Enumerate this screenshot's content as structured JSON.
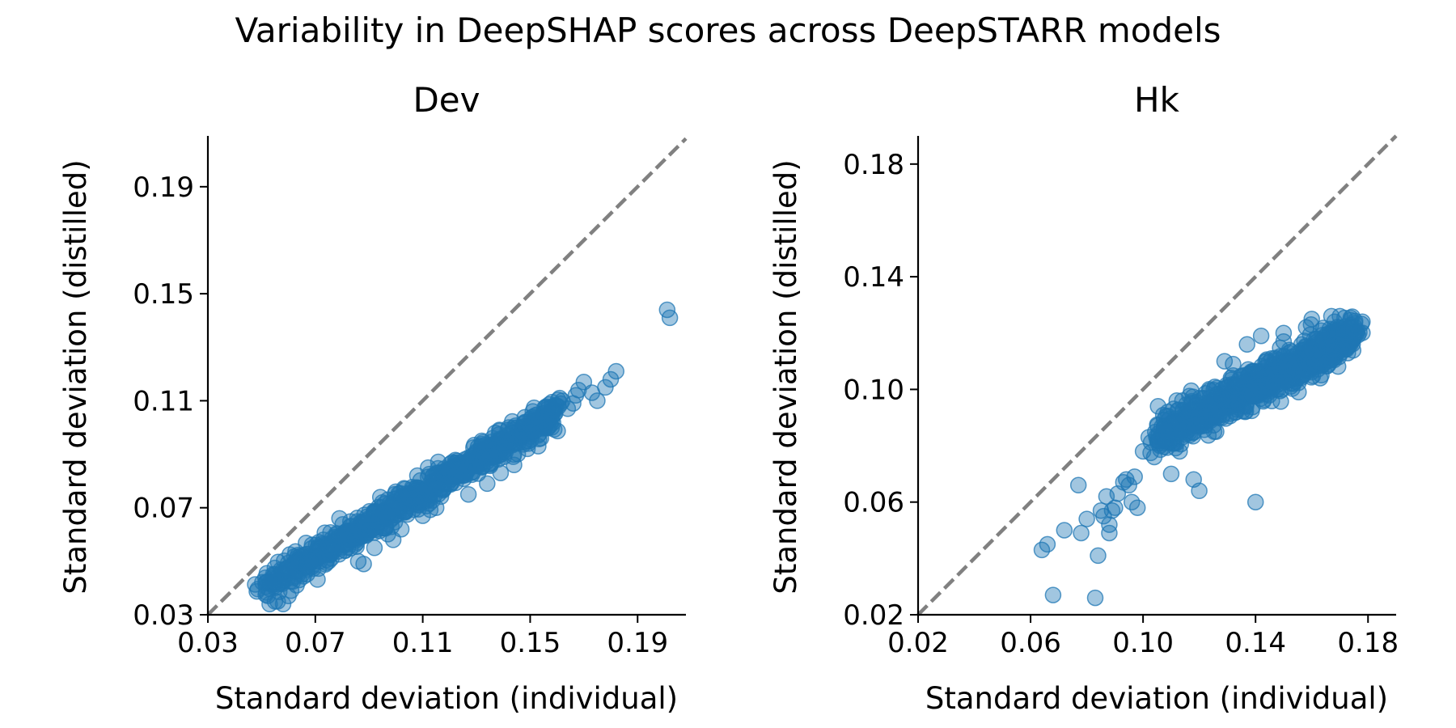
{
  "suptitle": "Variability in DeepSHAP scores across DeepSTARR models",
  "colors": {
    "points": "#1f77b4",
    "identity_line": "#808080",
    "axis": "#000000"
  },
  "chart_data": [
    {
      "type": "scatter",
      "title": "Dev",
      "xlabel": "Standard deviation (individual)",
      "ylabel": "Standard deviation (distilled)",
      "xlim": [
        0.03,
        0.208
      ],
      "ylim": [
        0.03,
        0.209
      ],
      "xticks": [
        0.03,
        0.07,
        0.11,
        0.15,
        0.19
      ],
      "yticks": [
        0.03,
        0.07,
        0.11,
        0.15,
        0.19
      ],
      "tick_labels": [
        "0.03",
        "0.07",
        "0.11",
        "0.15",
        "0.19"
      ],
      "identity_line": true,
      "grid": false,
      "cloud": {
        "n": 900,
        "x_range": [
          0.052,
          0.16
        ],
        "slope": 0.595,
        "intercept": 0.0105,
        "spread": 0.0028
      },
      "points": [
        [
          0.053,
          0.034
        ],
        [
          0.055,
          0.035
        ],
        [
          0.056,
          0.035
        ],
        [
          0.058,
          0.034
        ],
        [
          0.06,
          0.037
        ],
        [
          0.061,
          0.039
        ],
        [
          0.063,
          0.041
        ],
        [
          0.064,
          0.043
        ],
        [
          0.067,
          0.048
        ],
        [
          0.068,
          0.05
        ],
        [
          0.07,
          0.051
        ],
        [
          0.072,
          0.052
        ],
        [
          0.073,
          0.058
        ],
        [
          0.075,
          0.05
        ],
        [
          0.078,
          0.06
        ],
        [
          0.079,
          0.066
        ],
        [
          0.081,
          0.054
        ],
        [
          0.084,
          0.061
        ],
        [
          0.086,
          0.05
        ],
        [
          0.088,
          0.049
        ],
        [
          0.09,
          0.066
        ],
        [
          0.092,
          0.055
        ],
        [
          0.095,
          0.072
        ],
        [
          0.097,
          0.073
        ],
        [
          0.099,
          0.058
        ],
        [
          0.1,
          0.076
        ],
        [
          0.102,
          0.062
        ],
        [
          0.105,
          0.074
        ],
        [
          0.108,
          0.082
        ],
        [
          0.11,
          0.067
        ],
        [
          0.112,
          0.085
        ],
        [
          0.115,
          0.07
        ],
        [
          0.118,
          0.079
        ],
        [
          0.121,
          0.087
        ],
        [
          0.124,
          0.085
        ],
        [
          0.127,
          0.075
        ],
        [
          0.13,
          0.091
        ],
        [
          0.132,
          0.095
        ],
        [
          0.134,
          0.079
        ],
        [
          0.137,
          0.098
        ],
        [
          0.139,
          0.083
        ],
        [
          0.14,
          0.096
        ],
        [
          0.142,
          0.1
        ],
        [
          0.144,
          0.086
        ],
        [
          0.146,
          0.096
        ],
        [
          0.148,
          0.102
        ],
        [
          0.149,
          0.092
        ],
        [
          0.15,
          0.098
        ],
        [
          0.151,
          0.106
        ],
        [
          0.153,
          0.093
        ],
        [
          0.154,
          0.096
        ],
        [
          0.156,
          0.104
        ],
        [
          0.158,
          0.1
        ],
        [
          0.159,
          0.105
        ],
        [
          0.16,
          0.108
        ],
        [
          0.161,
          0.111
        ],
        [
          0.162,
          0.11
        ],
        [
          0.164,
          0.107
        ],
        [
          0.166,
          0.109
        ],
        [
          0.167,
          0.112
        ],
        [
          0.168,
          0.114
        ],
        [
          0.17,
          0.117
        ],
        [
          0.173,
          0.113
        ],
        [
          0.175,
          0.11
        ],
        [
          0.178,
          0.115
        ],
        [
          0.18,
          0.118
        ],
        [
          0.182,
          0.121
        ],
        [
          0.201,
          0.144
        ],
        [
          0.202,
          0.141
        ]
      ]
    },
    {
      "type": "scatter",
      "title": "Hk",
      "xlabel": "Standard deviation (individual)",
      "ylabel": "Standard deviation (distilled)",
      "xlim": [
        0.02,
        0.19
      ],
      "ylim": [
        0.02,
        0.19
      ],
      "xticks": [
        0.02,
        0.06,
        0.1,
        0.14,
        0.18
      ],
      "yticks": [
        0.02,
        0.06,
        0.1,
        0.14,
        0.18
      ],
      "tick_labels": [
        "0.02",
        "0.06",
        "0.10",
        "0.14",
        "0.18"
      ],
      "identity_line": true,
      "grid": false,
      "cloud": {
        "n": 900,
        "x_range": [
          0.105,
          0.175
        ],
        "slope": 0.52,
        "intercept": 0.0285,
        "spread": 0.0035
      },
      "points": [
        [
          0.064,
          0.043
        ],
        [
          0.066,
          0.045
        ],
        [
          0.068,
          0.027
        ],
        [
          0.072,
          0.05
        ],
        [
          0.077,
          0.066
        ],
        [
          0.078,
          0.049
        ],
        [
          0.08,
          0.054
        ],
        [
          0.083,
          0.026
        ],
        [
          0.084,
          0.041
        ],
        [
          0.085,
          0.057
        ],
        [
          0.086,
          0.055
        ],
        [
          0.087,
          0.062
        ],
        [
          0.088,
          0.049
        ],
        [
          0.088,
          0.052
        ],
        [
          0.089,
          0.057
        ],
        [
          0.09,
          0.058
        ],
        [
          0.091,
          0.063
        ],
        [
          0.093,
          0.067
        ],
        [
          0.094,
          0.068
        ],
        [
          0.095,
          0.066
        ],
        [
          0.096,
          0.06
        ],
        [
          0.097,
          0.069
        ],
        [
          0.098,
          0.058
        ],
        [
          0.1,
          0.078
        ],
        [
          0.102,
          0.083
        ],
        [
          0.104,
          0.076
        ],
        [
          0.106,
          0.08
        ],
        [
          0.108,
          0.082
        ],
        [
          0.11,
          0.07
        ],
        [
          0.112,
          0.096
        ],
        [
          0.113,
          0.078
        ],
        [
          0.114,
          0.096
        ],
        [
          0.115,
          0.088
        ],
        [
          0.118,
          0.068
        ],
        [
          0.12,
          0.064
        ],
        [
          0.121,
          0.088
        ],
        [
          0.124,
          0.094
        ],
        [
          0.126,
          0.085
        ],
        [
          0.128,
          0.09
        ],
        [
          0.129,
          0.11
        ],
        [
          0.132,
          0.109
        ],
        [
          0.133,
          0.095
        ],
        [
          0.137,
          0.116
        ],
        [
          0.138,
          0.098
        ],
        [
          0.14,
          0.06
        ],
        [
          0.142,
          0.119
        ],
        [
          0.145,
          0.105
        ],
        [
          0.148,
          0.1
        ],
        [
          0.15,
          0.117
        ],
        [
          0.152,
          0.114
        ],
        [
          0.154,
          0.108
        ],
        [
          0.157,
          0.113
        ],
        [
          0.158,
          0.122
        ],
        [
          0.16,
          0.115
        ],
        [
          0.162,
          0.118
        ],
        [
          0.163,
          0.104
        ],
        [
          0.165,
          0.11
        ],
        [
          0.167,
          0.126
        ],
        [
          0.169,
          0.121
        ],
        [
          0.17,
          0.126
        ],
        [
          0.171,
          0.116
        ],
        [
          0.172,
          0.119
        ],
        [
          0.174,
          0.122
        ],
        [
          0.176,
          0.12
        ],
        [
          0.178,
          0.124
        ],
        [
          0.16,
          0.125
        ],
        [
          0.15,
          0.12
        ],
        [
          0.144,
          0.1
        ],
        [
          0.136,
          0.105
        ],
        [
          0.128,
          0.1
        ]
      ]
    }
  ]
}
